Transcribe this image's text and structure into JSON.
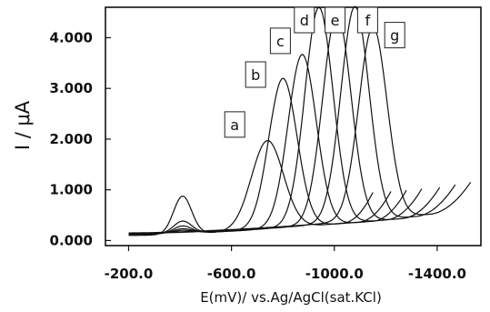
{
  "chart_data": {
    "type": "line",
    "xlabel": "E(mV)/ vs.Ag/AgCl(sat.KCl)",
    "ylabel": "I / μA",
    "x_reversed": true,
    "xlim": [
      -110,
      -1570
    ],
    "ylim": [
      -0.1,
      4.6
    ],
    "x_ticks": [
      -200,
      -600,
      -1000,
      -1400
    ],
    "x_tick_labels": [
      "-200.0",
      "-600.0",
      "-1000.0",
      "-1400.0"
    ],
    "y_ticks": [
      0,
      1,
      2,
      3,
      4
    ],
    "y_tick_labels": [
      "0.000",
      "1.000",
      "2.000",
      "3.000",
      "4.000"
    ],
    "grid": false,
    "legend": "none",
    "series": [
      {
        "label": "a",
        "start": -200,
        "end": -1150,
        "peak": -740,
        "height": 1.75,
        "width": 62,
        "base_start": 0.1,
        "base_end": 0.4,
        "hump": 0.75
      },
      {
        "label": "b",
        "start": -200,
        "end": -1220,
        "peak": -800,
        "height": 2.95,
        "width": 55,
        "base_start": 0.12,
        "base_end": 0.42,
        "hump": 0.3
      },
      {
        "label": "c",
        "start": -200,
        "end": -1280,
        "peak": -875,
        "height": 3.4,
        "width": 55,
        "base_start": 0.12,
        "base_end": 0.44,
        "hump": 0.18
      },
      {
        "label": "d",
        "start": -200,
        "end": -1340,
        "peak": -940,
        "height": 4.3,
        "width": 55,
        "base_start": 0.13,
        "base_end": 0.47,
        "hump": 0.1
      },
      {
        "label": "e",
        "start": -200,
        "end": -1410,
        "peak": -1010,
        "height": 4.15,
        "width": 55,
        "base_start": 0.14,
        "base_end": 0.5,
        "hump": 0.05
      },
      {
        "label": "f",
        "start": -200,
        "end": -1470,
        "peak": -1080,
        "height": 4.25,
        "width": 55,
        "base_start": 0.14,
        "base_end": 0.55,
        "hump": 0.0
      },
      {
        "label": "g",
        "start": -200,
        "end": -1530,
        "peak": -1150,
        "height": 3.8,
        "width": 55,
        "base_start": 0.15,
        "base_end": 0.6,
        "hump": 0.0
      }
    ],
    "annotations": [
      {
        "text": "a",
        "x": -740,
        "y": 1.75
      },
      {
        "text": "b",
        "x": -800,
        "y": 2.95
      },
      {
        "text": "c",
        "x": -875,
        "y": 3.4
      },
      {
        "text": "d",
        "x": -940,
        "y": 4.3
      },
      {
        "text": "e",
        "x": -1010,
        "y": 4.15
      },
      {
        "text": "f",
        "x": -1080,
        "y": 4.25
      },
      {
        "text": "g",
        "x": -1150,
        "y": 3.8
      }
    ]
  }
}
